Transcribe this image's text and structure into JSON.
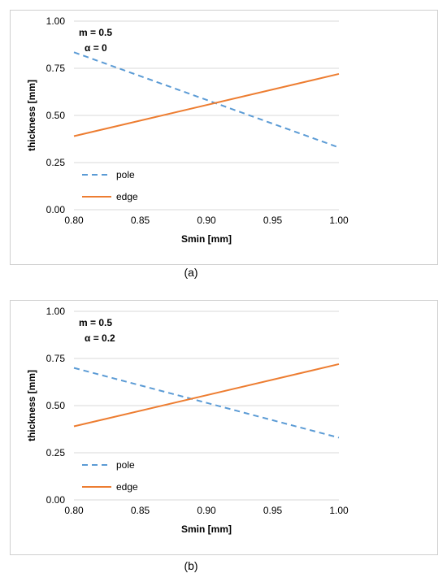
{
  "panels": [
    {
      "caption": "(a)",
      "chart_data": {
        "type": "line",
        "xlabel": "Smin [mm]",
        "ylabel": "thickness [mm]",
        "xlim": [
          0.8,
          1.0
        ],
        "ylim": [
          0.0,
          1.0
        ],
        "xticks": [
          "0.80",
          "0.85",
          "0.90",
          "0.95",
          "1.00"
        ],
        "yticks": [
          "0.00",
          "0.25",
          "0.50",
          "0.75",
          "1.00"
        ],
        "grid": "horizontal",
        "annotations": [
          "m = 0.5",
          "α = 0"
        ],
        "legend_position": "bottom-left",
        "series": [
          {
            "name": "pole",
            "style": "dashed",
            "color": "#5b9bd5",
            "x": [
              0.8,
              1.0
            ],
            "y": [
              0.835,
              0.33
            ]
          },
          {
            "name": "edge",
            "style": "solid",
            "color": "#ed7d31",
            "x": [
              0.8,
              1.0
            ],
            "y": [
              0.39,
              0.72
            ]
          }
        ]
      }
    },
    {
      "caption": "(b)",
      "chart_data": {
        "type": "line",
        "xlabel": "Smin [mm]",
        "ylabel": "thickness [mm]",
        "xlim": [
          0.8,
          1.0
        ],
        "ylim": [
          0.0,
          1.0
        ],
        "xticks": [
          "0.80",
          "0.85",
          "0.90",
          "0.95",
          "1.00"
        ],
        "yticks": [
          "0.00",
          "0.25",
          "0.50",
          "0.75",
          "1.00"
        ],
        "grid": "horizontal",
        "annotations": [
          "m = 0.5",
          "α = 0.2"
        ],
        "legend_position": "bottom-left",
        "series": [
          {
            "name": "pole",
            "style": "dashed",
            "color": "#5b9bd5",
            "x": [
              0.8,
              1.0
            ],
            "y": [
              0.7,
              0.33
            ]
          },
          {
            "name": "edge",
            "style": "solid",
            "color": "#ed7d31",
            "x": [
              0.8,
              1.0
            ],
            "y": [
              0.39,
              0.72
            ]
          }
        ]
      }
    }
  ]
}
